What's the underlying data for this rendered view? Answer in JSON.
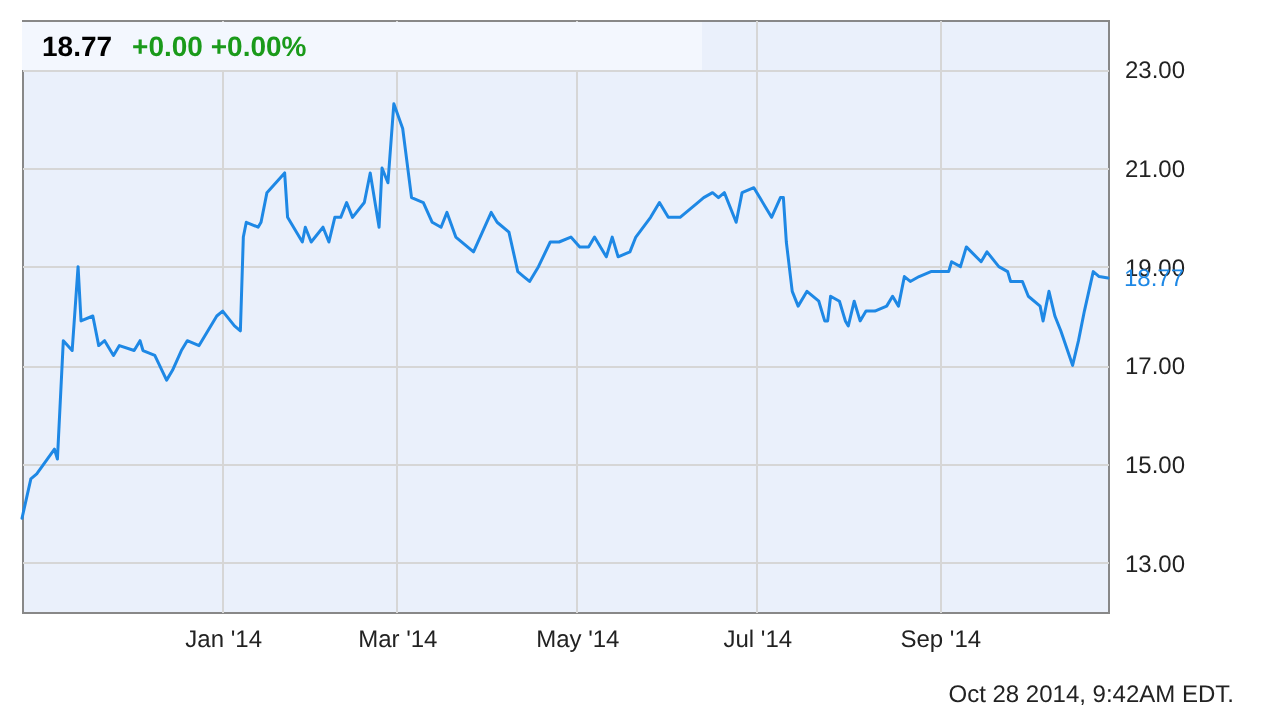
{
  "chart_data": {
    "type": "line",
    "title": "18.77",
    "subtitle": "+0.00  +0.00%",
    "annotations": [
      "Oct 28 2014, 9:42AM EDT.",
      {
        "text": "18.77",
        "x": "2014-10-28",
        "y": 18.77
      }
    ],
    "x": [
      "2013-10-25",
      "2013-10-28",
      "2013-10-30",
      "2013-11-05",
      "2013-11-06",
      "2013-11-08",
      "2013-11-11",
      "2013-11-13",
      "2013-11-14",
      "2013-11-18",
      "2013-11-20",
      "2013-11-22",
      "2013-11-25",
      "2013-11-27",
      "2013-12-02",
      "2013-12-04",
      "2013-12-05",
      "2013-12-09",
      "2013-12-13",
      "2013-12-15",
      "2013-12-18",
      "2013-12-20",
      "2013-12-24",
      "2013-12-30",
      "2014-01-01",
      "2014-01-05",
      "2014-01-07",
      "2014-01-08",
      "2014-01-09",
      "2014-01-13",
      "2014-01-14",
      "2014-01-16",
      "2014-01-22",
      "2014-01-23",
      "2014-01-28",
      "2014-01-29",
      "2014-01-31",
      "2014-02-04",
      "2014-02-06",
      "2014-02-08",
      "2014-02-10",
      "2014-02-12",
      "2014-02-14",
      "2014-02-18",
      "2014-02-20",
      "2014-02-23",
      "2014-02-24",
      "2014-02-26",
      "2014-02-28",
      "2014-03-03",
      "2014-03-06",
      "2014-03-10",
      "2014-03-13",
      "2014-03-16",
      "2014-03-18",
      "2014-03-21",
      "2014-03-27",
      "2014-03-30",
      "2014-04-02",
      "2014-04-04",
      "2014-04-08",
      "2014-04-11",
      "2014-04-13",
      "2014-04-15",
      "2014-04-18",
      "2014-04-22",
      "2014-04-25",
      "2014-04-29",
      "2014-05-02",
      "2014-05-05",
      "2014-05-07",
      "2014-05-11",
      "2014-05-13",
      "2014-05-15",
      "2014-05-19",
      "2014-05-21",
      "2014-05-26",
      "2014-05-29",
      "2014-06-01",
      "2014-06-05",
      "2014-06-11",
      "2014-06-13",
      "2014-06-16",
      "2014-06-18",
      "2014-06-20",
      "2014-06-24",
      "2014-06-26",
      "2014-06-30",
      "2014-07-02",
      "2014-07-06",
      "2014-07-09",
      "2014-07-10",
      "2014-07-11",
      "2014-07-13",
      "2014-07-15",
      "2014-07-18",
      "2014-07-22",
      "2014-07-24",
      "2014-07-25",
      "2014-07-26",
      "2014-07-29",
      "2014-07-31",
      "2014-08-01",
      "2014-08-03",
      "2014-08-05",
      "2014-08-07",
      "2014-08-10",
      "2014-08-14",
      "2014-08-16",
      "2014-08-18",
      "2014-08-20",
      "2014-08-22",
      "2014-08-25",
      "2014-08-29",
      "2014-09-04",
      "2014-09-05",
      "2014-09-08",
      "2014-09-10",
      "2014-09-15",
      "2014-09-17",
      "2014-09-21",
      "2014-09-24",
      "2014-09-25",
      "2014-09-29",
      "2014-10-01",
      "2014-10-05",
      "2014-10-06",
      "2014-10-08",
      "2014-10-10",
      "2014-10-12",
      "2014-10-16",
      "2014-10-18",
      "2014-10-20",
      "2014-10-23",
      "2014-10-25",
      "2014-10-28"
    ],
    "series": [
      {
        "color": "#1e88e5",
        "values": [
          13.9,
          14.7,
          14.8,
          15.3,
          15.1,
          17.5,
          17.3,
          19.0,
          17.9,
          18.0,
          17.4,
          17.5,
          17.2,
          17.4,
          17.3,
          17.5,
          17.3,
          17.2,
          16.7,
          16.9,
          17.3,
          17.5,
          17.4,
          18.0,
          18.1,
          17.8,
          17.7,
          19.6,
          19.9,
          19.8,
          19.9,
          20.5,
          20.9,
          20.0,
          19.5,
          19.8,
          19.5,
          19.8,
          19.5,
          20.0,
          20.0,
          20.3,
          20.0,
          20.3,
          20.9,
          19.8,
          21.0,
          20.7,
          22.3,
          21.8,
          20.4,
          20.3,
          19.9,
          19.8,
          20.1,
          19.6,
          19.3,
          19.7,
          20.1,
          19.9,
          19.7,
          18.9,
          18.8,
          18.7,
          19.0,
          19.5,
          19.5,
          19.6,
          19.4,
          19.4,
          19.6,
          19.2,
          19.6,
          19.2,
          19.3,
          19.6,
          20.0,
          20.3,
          20.0,
          20.0,
          20.3,
          20.4,
          20.5,
          20.4,
          20.5,
          19.9,
          20.5,
          20.6,
          20.4,
          20.0,
          20.4,
          20.4,
          19.5,
          18.5,
          18.2,
          18.5,
          18.3,
          17.9,
          17.9,
          18.4,
          18.3,
          17.9,
          17.8,
          18.3,
          17.9,
          18.1,
          18.1,
          18.2,
          18.4,
          18.2,
          18.8,
          18.7,
          18.8,
          18.9,
          18.9,
          19.1,
          19.0,
          19.4,
          19.1,
          19.3,
          19.0,
          18.9,
          18.7,
          18.7,
          18.4,
          18.2,
          17.9,
          18.5,
          18.0,
          17.7,
          17.0,
          17.5,
          18.1,
          18.9,
          18.8,
          18.77
        ]
      }
    ],
    "xlim": [
      "2013-10-25",
      "2014-10-28"
    ],
    "ylim": [
      12,
      24
    ],
    "xticks": [
      {
        "value": "2014-01-01",
        "label": "Jan '14"
      },
      {
        "value": "2014-03-01",
        "label": "Mar '14"
      },
      {
        "value": "2014-05-01",
        "label": "May '14"
      },
      {
        "value": "2014-07-01",
        "label": "Jul '14"
      },
      {
        "value": "2014-09-01",
        "label": "Sep '14"
      }
    ],
    "yticks": [
      {
        "value": 13,
        "label": "13.00"
      },
      {
        "value": 15,
        "label": "15.00"
      },
      {
        "value": 17,
        "label": "17.00"
      },
      {
        "value": 19,
        "label": "19.00"
      },
      {
        "value": 21,
        "label": "21.00"
      },
      {
        "value": 23,
        "label": "23.00"
      }
    ],
    "grid": true
  }
}
